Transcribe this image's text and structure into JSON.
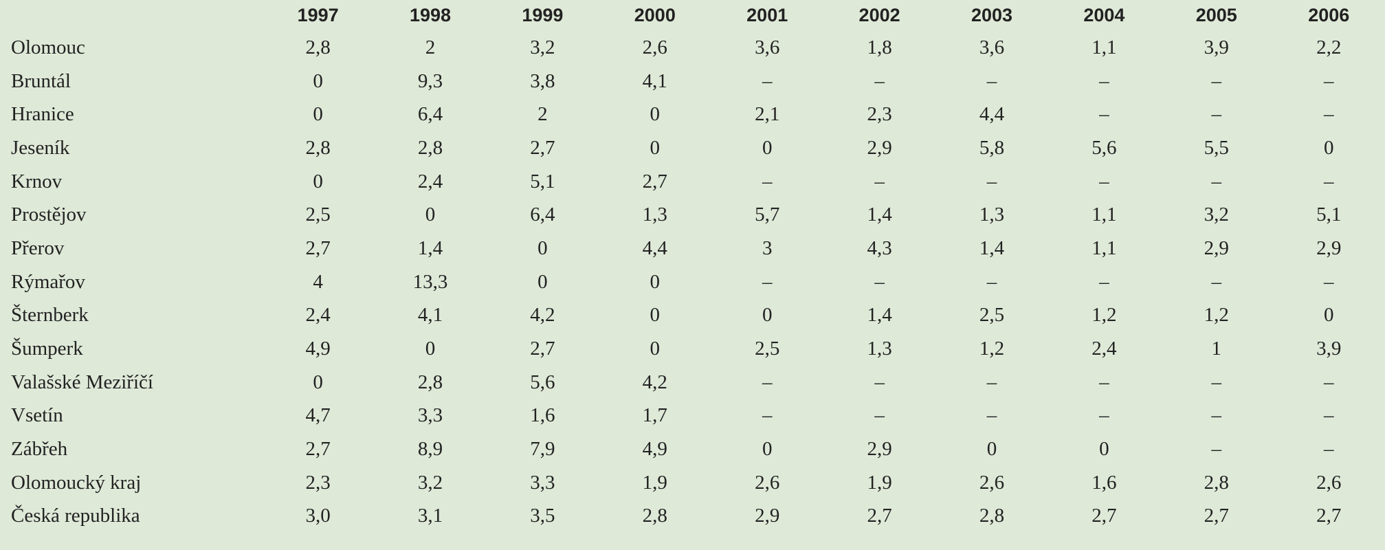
{
  "table": {
    "corner_label": "",
    "columns": [
      "1997",
      "1998",
      "1999",
      "2000",
      "2001",
      "2002",
      "2003",
      "2004",
      "2005",
      "2006"
    ],
    "rows": [
      {
        "label": "Olomouc",
        "values": [
          "2,8",
          "2",
          "3,2",
          "2,6",
          "3,6",
          "1,8",
          "3,6",
          "1,1",
          "3,9",
          "2,2"
        ]
      },
      {
        "label": "Bruntál",
        "values": [
          "0",
          "9,3",
          "3,8",
          "4,1",
          "–",
          "–",
          "–",
          "–",
          "–",
          "–"
        ]
      },
      {
        "label": "Hranice",
        "values": [
          "0",
          "6,4",
          "2",
          "0",
          "2,1",
          "2,3",
          "4,4",
          "–",
          "–",
          "–"
        ]
      },
      {
        "label": "Jeseník",
        "values": [
          "2,8",
          "2,8",
          "2,7",
          "0",
          "0",
          "2,9",
          "5,8",
          "5,6",
          "5,5",
          "0"
        ]
      },
      {
        "label": "Krnov",
        "values": [
          "0",
          "2,4",
          "5,1",
          "2,7",
          "–",
          "–",
          "–",
          "–",
          "–",
          "–"
        ]
      },
      {
        "label": "Prostějov",
        "values": [
          "2,5",
          "0",
          "6,4",
          "1,3",
          "5,7",
          "1,4",
          "1,3",
          "1,1",
          "3,2",
          "5,1"
        ]
      },
      {
        "label": "Přerov",
        "values": [
          "2,7",
          "1,4",
          "0",
          "4,4",
          "3",
          "4,3",
          "1,4",
          "1,1",
          "2,9",
          "2,9"
        ]
      },
      {
        "label": "Rýmařov",
        "values": [
          "4",
          "13,3",
          "0",
          "0",
          "–",
          "–",
          "–",
          "–",
          "–",
          "–"
        ]
      },
      {
        "label": "Šternberk",
        "values": [
          "2,4",
          "4,1",
          "4,2",
          "0",
          "0",
          "1,4",
          "2,5",
          "1,2",
          "1,2",
          "0"
        ]
      },
      {
        "label": "Šumperk",
        "values": [
          "4,9",
          "0",
          "2,7",
          "0",
          "2,5",
          "1,3",
          "1,2",
          "2,4",
          "1",
          "3,9"
        ]
      },
      {
        "label": "Valašské Meziříčí",
        "values": [
          "0",
          "2,8",
          "5,6",
          "4,2",
          "–",
          "–",
          "–",
          "–",
          "–",
          "–"
        ]
      },
      {
        "label": "Vsetín",
        "values": [
          "4,7",
          "3,3",
          "1,6",
          "1,7",
          "–",
          "–",
          "–",
          "–",
          "–",
          "–"
        ]
      },
      {
        "label": "Zábřeh",
        "values": [
          "2,7",
          "8,9",
          "7,9",
          "4,9",
          "0",
          "2,9",
          "0",
          "0",
          "–",
          "–"
        ]
      },
      {
        "label": "Olomoucký kraj",
        "values": [
          "2,3",
          "3,2",
          "3,3",
          "1,9",
          "2,6",
          "1,9",
          "2,6",
          "1,6",
          "2,8",
          "2,6"
        ]
      },
      {
        "label": "Česká republika",
        "values": [
          "3,0",
          "3,1",
          "3,5",
          "2,8",
          "2,9",
          "2,7",
          "2,8",
          "2,7",
          "2,7",
          "2,7"
        ]
      }
    ]
  },
  "colors": {
    "background": "#dfe9d8",
    "text": "#222222"
  }
}
